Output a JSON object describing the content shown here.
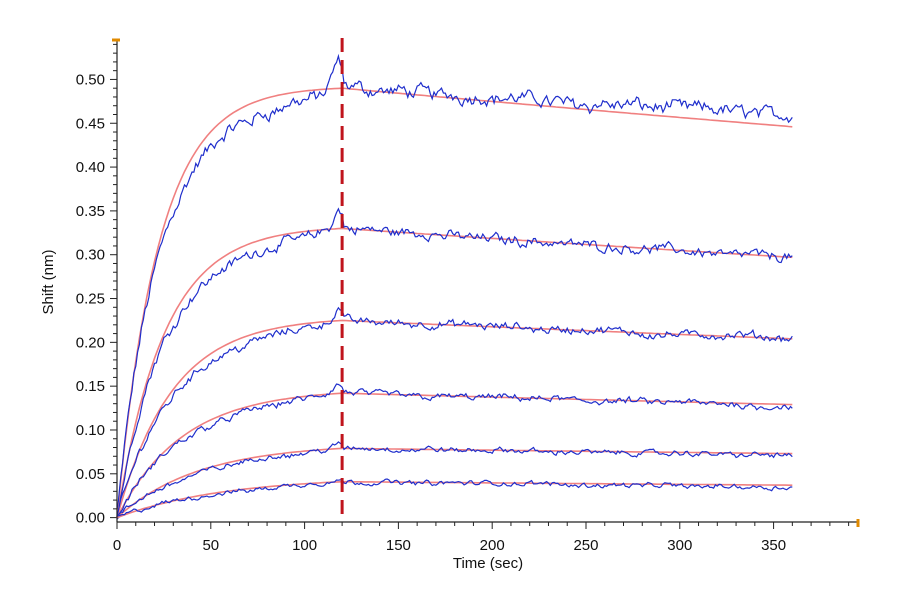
{
  "chart_data": {
    "type": "line",
    "xlabel": "Time (sec)",
    "ylabel": "Shift (nm)",
    "xlim": [
      0,
      395
    ],
    "ylim": [
      -0.005,
      0.545
    ],
    "xticks": [
      0,
      50,
      100,
      150,
      200,
      250,
      300,
      350
    ],
    "xtick_labels": [
      "0",
      "50",
      "100",
      "150",
      "200",
      "250",
      "300",
      "350"
    ],
    "yticks": [
      0.0,
      0.05,
      0.1,
      0.15,
      0.2,
      0.25,
      0.3,
      0.35,
      0.4,
      0.45,
      0.5
    ],
    "ytick_labels": [
      "0.00",
      "0.05",
      "0.10",
      "0.15",
      "0.20",
      "0.25",
      "0.30",
      "0.35",
      "0.40",
      "0.45",
      "0.50"
    ],
    "grid": false,
    "legend": "none",
    "association_end_marker": {
      "x": 120,
      "style": "dashed",
      "color": "#c0141c"
    },
    "colors": {
      "measured": "#1f2ecc",
      "fit": "#f08080",
      "axis": "#222222",
      "axis_end_caps": "#e08a00"
    },
    "series": [
      {
        "kind": "measured+fit",
        "peak_at_120": 0.49,
        "end_at_360_measured": 0.46,
        "end_at_360_fit": 0.446
      },
      {
        "kind": "measured+fit",
        "peak_at_120": 0.33,
        "end_at_360_measured": 0.297,
        "end_at_360_fit": 0.297
      },
      {
        "kind": "measured+fit",
        "peak_at_120": 0.225,
        "end_at_360_measured": 0.204,
        "end_at_360_fit": 0.204
      },
      {
        "kind": "measured+fit",
        "peak_at_120": 0.142,
        "end_at_360_measured": 0.127,
        "end_at_360_fit": 0.129
      },
      {
        "kind": "measured+fit",
        "peak_at_120": 0.079,
        "end_at_360_measured": 0.071,
        "end_at_360_fit": 0.073
      },
      {
        "kind": "measured+fit",
        "peak_at_120": 0.041,
        "end_at_360_measured": 0.035,
        "end_at_360_fit": 0.037
      }
    ]
  }
}
